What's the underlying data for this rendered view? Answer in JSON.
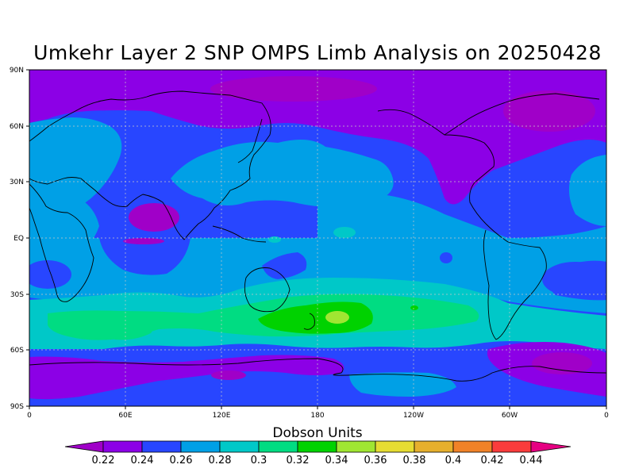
{
  "title": "Umkehr Layer 2 SNP OMPS Limb Analysis on 20250428",
  "map": {
    "lat_labels": [
      "90N",
      "60N",
      "30N",
      "EQ",
      "30S",
      "60S",
      "90S"
    ],
    "lon_labels": [
      "0",
      "60E",
      "120E",
      "180",
      "120W",
      "60W",
      "0"
    ]
  },
  "colorbar": {
    "title": "Dobson Units",
    "levels": [
      "0.22",
      "0.24",
      "0.26",
      "0.28",
      "0.3",
      "0.32",
      "0.34",
      "0.36",
      "0.38",
      "0.4",
      "0.42",
      "0.44"
    ],
    "colors": [
      "#a000c8",
      "#8c00e6",
      "#2846ff",
      "#00a0e6",
      "#00c8c8",
      "#00dc82",
      "#00d200",
      "#a0e632",
      "#e6dc32",
      "#e6af2d",
      "#f08228",
      "#fa3c3c",
      "#e60082"
    ]
  },
  "palette": {
    "violet": "#8c00e6",
    "magenta": "#a000c8",
    "blue": "#2846ff",
    "sky": "#00a0e6",
    "cyan": "#00c8c8",
    "seagreen": "#00dc82",
    "green": "#00d200",
    "lime": "#a0e632"
  }
}
